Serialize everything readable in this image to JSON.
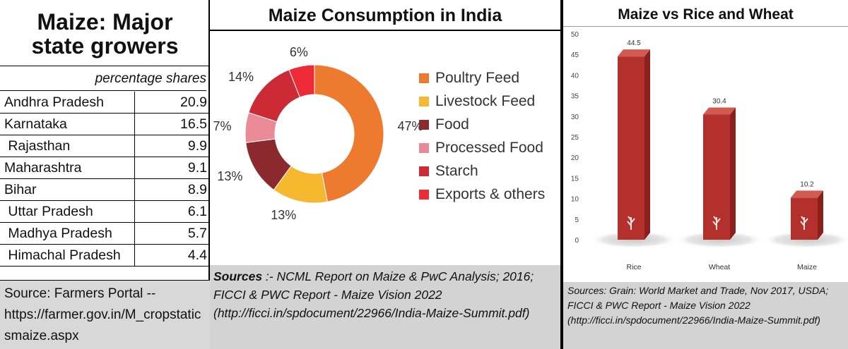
{
  "states_panel": {
    "title_line1": "Maize: Major",
    "title_line2": "state growers",
    "subtitle": "percentage shares",
    "rows": [
      {
        "state": "Andhra Pradesh",
        "value": "20.9"
      },
      {
        "state": "Karnataka",
        "value": "16.5"
      },
      {
        "state": " Rajasthan",
        "value": "9.9"
      },
      {
        "state": "Maharashtra",
        "value": "9.1"
      },
      {
        "state": "Bihar",
        "value": "8.9"
      },
      {
        "state": " Uttar Pradesh",
        "value": "6.1"
      },
      {
        "state": " Madhya Pradesh",
        "value": "5.7"
      },
      {
        "state": " Himachal Pradesh",
        "value": "4.4"
      }
    ],
    "source": "Source: Farmers Portal -- https://farmer.gov.in/M_cropstaticsmaize.aspx"
  },
  "consumption_panel": {
    "title": "Maize Consumption in India",
    "source_bold": "Sources",
    "source_rest": " :- NCML Report on Maize & PwC Analysis; 2016; FICCI & PWC Report - Maize Vision 2022 (http://ficci.in/spdocument/22966/India-Maize-Summit.pdf)"
  },
  "comparison_panel": {
    "title": "Maize vs Rice and Wheat",
    "source": "Sources: Grain: World Market and Trade, Nov 2017, USDA; FICCI & PWC Report - Maize Vision 2022 (http://ficci.in/spdocument/22966/India-Maize-Summit.pdf)"
  },
  "chart_data": [
    {
      "type": "table",
      "title": "Maize: Major state growers",
      "subtitle": "percentage shares",
      "categories": [
        "Andhra Pradesh",
        "Karnataka",
        "Rajasthan",
        "Maharashtra",
        "Bihar",
        "Uttar Pradesh",
        "Madhya Pradesh",
        "Himachal Pradesh"
      ],
      "values": [
        20.9,
        16.5,
        9.9,
        9.1,
        8.9,
        6.1,
        5.7,
        4.4
      ]
    },
    {
      "type": "pie",
      "donut": true,
      "title": "Maize Consumption in India",
      "legend_position": "right",
      "slices": [
        {
          "label": "Poultry Feed",
          "value": 47,
          "display": "47%",
          "color": "#ee7a30"
        },
        {
          "label": "Livestock Feed",
          "value": 13,
          "display": "13%",
          "color": "#f5b82e"
        },
        {
          "label": "Food",
          "value": 13,
          "display": "13%",
          "color": "#8b2a2e"
        },
        {
          "label": "Processed Food",
          "value": 7,
          "display": "7%",
          "color": "#ea8a97"
        },
        {
          "label": "Starch",
          "value": 14,
          "display": "14%",
          "color": "#cc2a35"
        },
        {
          "label": "Exports & others",
          "value": 6,
          "display": "6%",
          "color": "#ec2a38"
        }
      ]
    },
    {
      "type": "bar",
      "title": "Maize vs Rice and Wheat",
      "categories": [
        "Rice",
        "Wheat",
        "Maize"
      ],
      "values": [
        44.5,
        30.4,
        10.2
      ],
      "value_labels": [
        "44.5",
        "30.4",
        "10.2"
      ],
      "ylim": [
        0,
        50
      ],
      "yticks": [
        "0",
        "5",
        "10",
        "15",
        "20",
        "25",
        "30",
        "35",
        "40",
        "45",
        "50"
      ],
      "grid": false,
      "bar_color": "#b3302c"
    }
  ]
}
